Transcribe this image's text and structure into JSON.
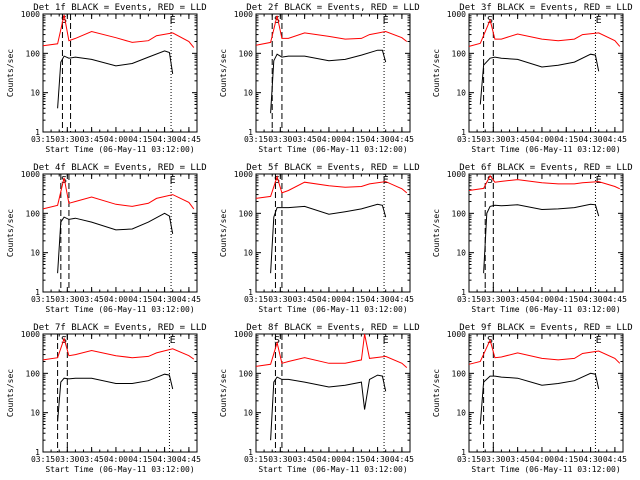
{
  "chart_data": [
    {
      "type": "line",
      "title": "Det 1f BLACK = Events, RED = LLD",
      "xlabel": "Start Time (06-May-11 03:12:00)",
      "ylabel": "Counts/sec",
      "x_ticks": [
        "03:15",
        "03:30",
        "03:45",
        "04:00",
        "04:15",
        "04:30",
        "04:45"
      ],
      "y_ticks": [
        "1",
        "10",
        "100",
        "1000"
      ],
      "y_scale": "log",
      "xlim": [
        "03:15",
        "04:50"
      ],
      "ylim": [
        1,
        1000
      ],
      "markers": {
        "S": "03:28",
        "E": "04:35"
      },
      "series": [
        {
          "color": "#ff0000",
          "x": [
            "03:15",
            "03:24",
            "03:28",
            "03:31",
            "03:35",
            "03:45",
            "04:00",
            "04:10",
            "04:20",
            "04:25",
            "04:35",
            "04:45",
            "04:48"
          ],
          "y": [
            155,
            175,
            950,
            210,
            240,
            360,
            250,
            190,
            210,
            280,
            330,
            200,
            140
          ]
        },
        {
          "color": "#000000",
          "x": [
            "03:24",
            "03:26",
            "03:28",
            "03:31",
            "03:35",
            "03:45",
            "04:00",
            "04:10",
            "04:20",
            "04:30",
            "04:33",
            "04:35"
          ],
          "y": [
            4,
            60,
            85,
            75,
            80,
            70,
            48,
            55,
            80,
            115,
            105,
            30
          ]
        }
      ],
      "vlines": [
        {
          "style": "dashed",
          "x": "03:27"
        },
        {
          "style": "dashed",
          "x": "03:32"
        },
        {
          "style": "dotted",
          "x": "04:34"
        }
      ]
    },
    {
      "type": "line",
      "title": "Det 2f BLACK = Events, RED = LLD",
      "xlabel": "Start Time (06-May-11 03:12:00)",
      "ylabel": "Counts/sec",
      "x_ticks": [
        "03:15",
        "03:30",
        "03:45",
        "04:00",
        "04:15",
        "04:30",
        "04:45"
      ],
      "y_ticks": [
        "1",
        "10",
        "100",
        "1000"
      ],
      "y_scale": "log",
      "xlim": [
        "03:15",
        "04:50"
      ],
      "ylim": [
        1,
        1000
      ],
      "markers": {
        "S": "03:28",
        "E": "04:35"
      },
      "series": [
        {
          "color": "#ff0000",
          "x": [
            "03:15",
            "03:24",
            "03:28",
            "03:31",
            "03:35",
            "03:45",
            "04:00",
            "04:10",
            "04:20",
            "04:25",
            "04:35",
            "04:45",
            "04:48"
          ],
          "y": [
            160,
            190,
            900,
            240,
            240,
            330,
            270,
            230,
            240,
            300,
            360,
            250,
            200
          ]
        },
        {
          "color": "#000000",
          "x": [
            "03:24",
            "03:26",
            "03:28",
            "03:31",
            "03:35",
            "03:45",
            "04:00",
            "04:10",
            "04:20",
            "04:30",
            "04:33",
            "04:35"
          ],
          "y": [
            3,
            65,
            95,
            80,
            85,
            85,
            65,
            70,
            90,
            120,
            120,
            60
          ]
        }
      ],
      "vlines": [
        {
          "style": "dashed",
          "x": "03:25"
        },
        {
          "style": "dashed",
          "x": "03:31"
        },
        {
          "style": "dotted",
          "x": "04:34"
        }
      ]
    },
    {
      "type": "line",
      "title": "Det 3f BLACK = Events, RED = LLD",
      "xlabel": "Start Time (06-May-11 03:12:00)",
      "ylabel": "Counts/sec",
      "x_ticks": [
        "03:15",
        "03:30",
        "03:45",
        "04:00",
        "04:15",
        "04:30",
        "04:45"
      ],
      "y_ticks": [
        "1",
        "10",
        "100",
        "1000"
      ],
      "y_scale": "log",
      "xlim": [
        "03:15",
        "04:50"
      ],
      "ylim": [
        1,
        1000
      ],
      "markers": {
        "S": "03:28",
        "E": "04:35"
      },
      "series": [
        {
          "color": "#ff0000",
          "x": [
            "03:15",
            "03:22",
            "03:28",
            "03:31",
            "03:35",
            "03:45",
            "04:00",
            "04:10",
            "04:20",
            "04:25",
            "04:35",
            "04:45",
            "04:48"
          ],
          "y": [
            150,
            180,
            700,
            230,
            230,
            310,
            230,
            210,
            230,
            300,
            330,
            210,
            150
          ]
        },
        {
          "color": "#000000",
          "x": [
            "03:22",
            "03:24",
            "03:28",
            "03:31",
            "03:35",
            "03:45",
            "04:00",
            "04:10",
            "04:20",
            "04:30",
            "04:33",
            "04:35"
          ],
          "y": [
            5,
            50,
            75,
            80,
            75,
            70,
            45,
            50,
            60,
            95,
            90,
            35
          ]
        }
      ],
      "vlines": [
        {
          "style": "dashed",
          "x": "03:24"
        },
        {
          "style": "dashed",
          "x": "03:30"
        },
        {
          "style": "dotted",
          "x": "04:33"
        }
      ]
    },
    {
      "type": "line",
      "title": "Det 4f BLACK = Events, RED = LLD",
      "xlabel": "Start Time (06-May-11 03:12:00)",
      "ylabel": "Counts/sec",
      "x_ticks": [
        "03:15",
        "03:30",
        "03:45",
        "04:00",
        "04:15",
        "04:30",
        "04:45"
      ],
      "y_ticks": [
        "1",
        "10",
        "100",
        "1000"
      ],
      "y_scale": "log",
      "xlim": [
        "03:15",
        "04:50"
      ],
      "ylim": [
        1,
        1000
      ],
      "markers": {
        "S": "03:28",
        "E": "04:35"
      },
      "series": [
        {
          "color": "#ff0000",
          "x": [
            "03:15",
            "03:24",
            "03:28",
            "03:31",
            "03:35",
            "03:45",
            "04:00",
            "04:10",
            "04:20",
            "04:25",
            "04:35",
            "04:45",
            "04:48"
          ],
          "y": [
            130,
            160,
            800,
            180,
            200,
            260,
            170,
            150,
            180,
            240,
            300,
            190,
            130
          ]
        },
        {
          "color": "#000000",
          "x": [
            "03:24",
            "03:26",
            "03:28",
            "03:31",
            "03:35",
            "03:45",
            "04:00",
            "04:10",
            "04:20",
            "04:30",
            "04:33",
            "04:35"
          ],
          "y": [
            3,
            60,
            80,
            70,
            75,
            60,
            38,
            40,
            60,
            100,
            85,
            30
          ]
        }
      ],
      "vlines": [
        {
          "style": "dashed",
          "x": "03:26"
        },
        {
          "style": "dashed",
          "x": "03:31"
        },
        {
          "style": "dotted",
          "x": "04:34"
        }
      ]
    },
    {
      "type": "line",
      "title": "Det 5f BLACK = Events, RED = LLD",
      "xlabel": "Start Time (06-May-11 03:12:00)",
      "ylabel": "Counts/sec",
      "x_ticks": [
        "03:15",
        "03:30",
        "03:45",
        "04:00",
        "04:15",
        "04:30",
        "04:45"
      ],
      "y_ticks": [
        "1",
        "10",
        "100",
        "1000"
      ],
      "y_scale": "log",
      "xlim": [
        "03:15",
        "04:50"
      ],
      "ylim": [
        1,
        1000
      ],
      "markers": {
        "S": "03:28",
        "E": "04:35"
      },
      "series": [
        {
          "color": "#ff0000",
          "x": [
            "03:15",
            "03:24",
            "03:28",
            "03:31",
            "03:35",
            "03:45",
            "04:00",
            "04:10",
            "04:20",
            "04:25",
            "04:35",
            "04:45",
            "04:48"
          ],
          "y": [
            240,
            270,
            850,
            330,
            380,
            620,
            500,
            460,
            480,
            560,
            640,
            420,
            330
          ]
        },
        {
          "color": "#000000",
          "x": [
            "03:24",
            "03:26",
            "03:28",
            "03:31",
            "03:35",
            "03:45",
            "04:00",
            "04:10",
            "04:20",
            "04:30",
            "04:33",
            "04:35"
          ],
          "y": [
            3,
            80,
            140,
            140,
            140,
            150,
            95,
            110,
            130,
            170,
            160,
            80
          ]
        }
      ],
      "vlines": [
        {
          "style": "dashed",
          "x": "03:27"
        },
        {
          "style": "dashed",
          "x": "03:31"
        },
        {
          "style": "dotted",
          "x": "04:34"
        }
      ]
    },
    {
      "type": "line",
      "title": "Det 6f BLACK = Events, RED = LLD",
      "xlabel": "Start Time (06-May-11 03:12:00)",
      "ylabel": "Counts/sec",
      "x_ticks": [
        "03:15",
        "03:30",
        "03:45",
        "04:00",
        "04:15",
        "04:30",
        "04:45"
      ],
      "y_ticks": [
        "1",
        "10",
        "100",
        "1000"
      ],
      "y_scale": "log",
      "xlim": [
        "03:15",
        "04:50"
      ],
      "ylim": [
        1,
        1000
      ],
      "markers": {
        "S": "03:28",
        "E": "04:35"
      },
      "series": [
        {
          "color": "#ff0000",
          "x": [
            "03:15",
            "03:24",
            "03:28",
            "03:31",
            "03:35",
            "03:45",
            "04:00",
            "04:10",
            "04:20",
            "04:25",
            "04:35",
            "04:45",
            "04:48"
          ],
          "y": [
            380,
            430,
            900,
            620,
            650,
            720,
            600,
            560,
            560,
            600,
            640,
            480,
            420
          ]
        },
        {
          "color": "#000000",
          "x": [
            "03:24",
            "03:26",
            "03:28",
            "03:31",
            "03:35",
            "03:45",
            "04:00",
            "04:10",
            "04:20",
            "04:30",
            "04:33",
            "04:35"
          ],
          "y": [
            3,
            100,
            150,
            160,
            155,
            165,
            125,
            130,
            140,
            170,
            165,
            85
          ]
        }
      ],
      "vlines": [
        {
          "style": "dashed",
          "x": "03:25"
        },
        {
          "style": "dashed",
          "x": "03:30"
        },
        {
          "style": "dotted",
          "x": "04:33"
        }
      ]
    },
    {
      "type": "line",
      "title": "Det 7f BLACK = Events, RED = LLD",
      "xlabel": "Start Time (06-May-11 03:12:00)",
      "ylabel": "Counts/sec",
      "x_ticks": [
        "03:15",
        "03:30",
        "03:45",
        "04:00",
        "04:15",
        "04:30",
        "04:45"
      ],
      "y_ticks": [
        "1",
        "10",
        "100",
        "1000"
      ],
      "y_scale": "log",
      "xlim": [
        "03:15",
        "04:50"
      ],
      "ylim": [
        1,
        1000
      ],
      "markers": {
        "S": "03:28",
        "E": "04:35"
      },
      "series": [
        {
          "color": "#ff0000",
          "x": [
            "03:15",
            "03:24",
            "03:28",
            "03:31",
            "03:35",
            "03:45",
            "04:00",
            "04:10",
            "04:20",
            "04:25",
            "04:35",
            "04:45",
            "04:48"
          ],
          "y": [
            220,
            250,
            760,
            280,
            300,
            380,
            280,
            250,
            270,
            330,
            420,
            280,
            230
          ]
        },
        {
          "color": "#000000",
          "x": [
            "03:24",
            "03:26",
            "03:28",
            "03:31",
            "03:35",
            "03:45",
            "04:00",
            "04:10",
            "04:20",
            "04:30",
            "04:33",
            "04:35"
          ],
          "y": [
            6,
            60,
            75,
            72,
            75,
            75,
            55,
            55,
            65,
            95,
            90,
            40
          ]
        }
      ],
      "vlines": [
        {
          "style": "dashed",
          "x": "03:24"
        },
        {
          "style": "dashed",
          "x": "03:30"
        },
        {
          "style": "dotted",
          "x": "04:33"
        }
      ]
    },
    {
      "type": "line",
      "title": "Det 8f BLACK = Events, RED = LLD",
      "xlabel": "Start Time (06-May-11 03:12:00)",
      "ylabel": "Counts/sec",
      "x_ticks": [
        "03:15",
        "03:30",
        "03:45",
        "04:00",
        "04:15",
        "04:30",
        "04:45"
      ],
      "y_ticks": [
        "1",
        "10",
        "100",
        "1000"
      ],
      "y_scale": "log",
      "xlim": [
        "03:15",
        "04:50"
      ],
      "ylim": [
        1,
        1000
      ],
      "markers": {
        "S": "03:28",
        "E": "04:35"
      },
      "series": [
        {
          "color": "#ff0000",
          "x": [
            "03:15",
            "03:24",
            "03:28",
            "03:31",
            "03:35",
            "03:45",
            "04:00",
            "04:10",
            "04:20",
            "04:22",
            "04:25",
            "04:35",
            "04:45",
            "04:48"
          ],
          "y": [
            150,
            170,
            600,
            180,
            200,
            250,
            180,
            180,
            220,
            1000,
            240,
            270,
            180,
            140
          ]
        },
        {
          "color": "#000000",
          "x": [
            "03:24",
            "03:26",
            "03:28",
            "03:31",
            "03:35",
            "03:45",
            "04:00",
            "04:10",
            "04:20",
            "04:22",
            "04:25",
            "04:30",
            "04:33",
            "04:35"
          ],
          "y": [
            2,
            60,
            80,
            70,
            70,
            60,
            45,
            50,
            60,
            12,
            70,
            90,
            85,
            35
          ]
        }
      ],
      "vlines": [
        {
          "style": "dashed",
          "x": "03:27"
        },
        {
          "style": "dashed",
          "x": "03:31"
        },
        {
          "style": "dotted",
          "x": "04:34"
        }
      ]
    },
    {
      "type": "line",
      "title": "Det 9f BLACK = Events, RED = LLD",
      "xlabel": "Start Time (06-May-11 03:12:00)",
      "ylabel": "Counts/sec",
      "x_ticks": [
        "03:15",
        "03:30",
        "03:45",
        "04:00",
        "04:15",
        "04:30",
        "04:45"
      ],
      "y_ticks": [
        "1",
        "10",
        "100",
        "1000"
      ],
      "y_scale": "log",
      "xlim": [
        "03:15",
        "04:50"
      ],
      "ylim": [
        1,
        1000
      ],
      "markers": {
        "S": "03:28",
        "E": "04:35"
      },
      "series": [
        {
          "color": "#ff0000",
          "x": [
            "03:15",
            "03:22",
            "03:28",
            "03:31",
            "03:35",
            "03:45",
            "04:00",
            "04:10",
            "04:20",
            "04:25",
            "04:35",
            "04:45",
            "04:48"
          ],
          "y": [
            170,
            200,
            700,
            250,
            260,
            330,
            240,
            220,
            240,
            320,
            370,
            240,
            180
          ]
        },
        {
          "color": "#000000",
          "x": [
            "03:22",
            "03:24",
            "03:28",
            "03:31",
            "03:35",
            "03:45",
            "04:00",
            "04:10",
            "04:20",
            "04:30",
            "04:33",
            "04:35"
          ],
          "y": [
            5,
            60,
            85,
            85,
            80,
            75,
            50,
            55,
            65,
            100,
            95,
            40
          ]
        }
      ],
      "vlines": [
        {
          "style": "dashed",
          "x": "03:24"
        },
        {
          "style": "dashed",
          "x": "03:30"
        },
        {
          "style": "dotted",
          "x": "04:33"
        }
      ]
    }
  ]
}
